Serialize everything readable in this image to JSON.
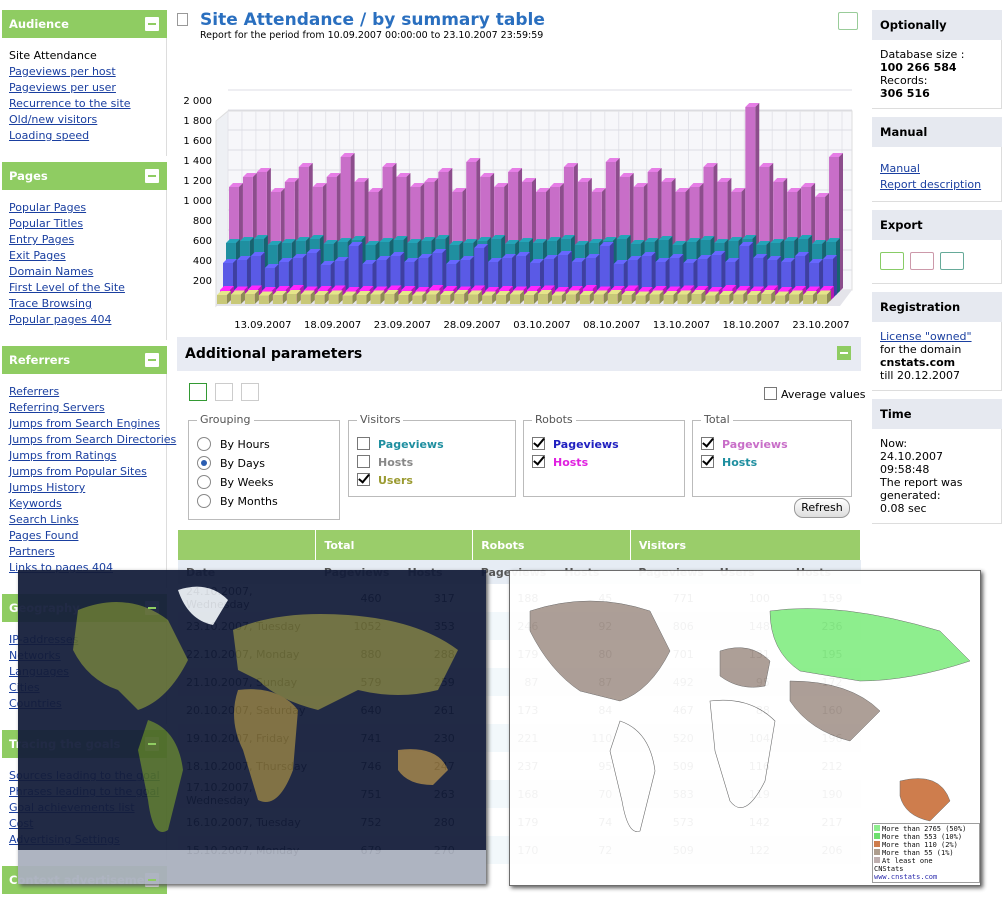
{
  "sidebar": [
    {
      "title": "Audience",
      "current": "Site Attendance",
      "links": [
        "Pageviews per host",
        "Pageviews per user",
        "Recurrence to the site",
        "Old/new visitors",
        "Loading speed"
      ]
    },
    {
      "title": "Pages",
      "links": [
        "Popular Pages",
        "Popular Titles",
        "Entry Pages",
        "Exit Pages",
        "Domain Names",
        "First Level of the Site",
        "Trace Browsing",
        "Popular pages 404"
      ]
    },
    {
      "title": "Referrers",
      "links": [
        "Referrers",
        "Referring Servers",
        "Jumps from Search Engines",
        "Jumps from Search Directories",
        "Jumps from Ratings",
        "Jumps from Popular Sites",
        "Jumps History",
        "Keywords",
        "Search Links",
        "Pages Found",
        "Partners",
        "Links to pages 404"
      ]
    },
    {
      "title": "Geography",
      "links": [
        "IP-addresses",
        "Networks",
        "Languages",
        "Cities",
        "Countries"
      ]
    },
    {
      "title": "Tracing the goals",
      "links": [
        "Sources leading to the goal",
        "Phrases leading to the goal",
        "Goal achievements list",
        "Cost",
        "Advertising Settings"
      ]
    },
    {
      "title": "Context advertisement",
      "links": []
    }
  ],
  "header": {
    "title": "Site Attendance / by summary table",
    "subtitle": "Report for the period from 10.09.2007 00:00:00 to 23.10.2007 23:59:59"
  },
  "chart_data": {
    "type": "bar3d",
    "categories": [
      null,
      null,
      null,
      "13.09.2007",
      null,
      null,
      null,
      null,
      "18.09.2007",
      null,
      null,
      null,
      null,
      "23.09.2007",
      null,
      null,
      null,
      null,
      "28.09.2007",
      null,
      null,
      null,
      null,
      "03.10.2007",
      null,
      null,
      null,
      null,
      "08.10.2007",
      null,
      null,
      null,
      null,
      "13.10.2007",
      null,
      null,
      null,
      null,
      "18.10.2007",
      null,
      null,
      null,
      null,
      "23.10.2007"
    ],
    "ylim": [
      0,
      2000
    ],
    "yticks": [
      {
        "value": 200,
        "label": "200"
      },
      {
        "value": 400,
        "label": "400"
      },
      {
        "value": 600,
        "label": "600"
      },
      {
        "value": 800,
        "label": "800"
      },
      {
        "value": 1000,
        "label": "1 000"
      },
      {
        "value": 1200,
        "label": "1 200"
      },
      {
        "value": 1400,
        "label": "1 400"
      },
      {
        "value": 1600,
        "label": "1 600"
      },
      {
        "value": 1800,
        "label": "1 800"
      },
      {
        "value": 2000,
        "label": "2 000"
      }
    ],
    "grid": true,
    "series": [
      {
        "color": "#c86ec8",
        "values": [
          1050,
          1150,
          1200,
          1000,
          1100,
          1250,
          1050,
          1150,
          1350,
          1100,
          1000,
          1250,
          1150,
          1050,
          1100,
          1200,
          1000,
          1300,
          1150,
          1050,
          1200,
          1100,
          1000,
          1050,
          1250,
          1100,
          1000,
          1300,
          1150,
          1050,
          1200,
          1100,
          1000,
          1050,
          1250,
          1100,
          1000,
          1850,
          1250,
          1100,
          1000,
          1050,
          950,
          1350
        ]
      },
      {
        "color": "#1f8fa0",
        "values": [
          520,
          540,
          560,
          500,
          520,
          540,
          560,
          510,
          530,
          550,
          500,
          530,
          550,
          520,
          540,
          560,
          500,
          520,
          540,
          560,
          510,
          530,
          520,
          540,
          560,
          500,
          520,
          540,
          560,
          510,
          530,
          550,
          500,
          530,
          550,
          520,
          540,
          560,
          500,
          520,
          540,
          560,
          510,
          530
        ]
      },
      {
        "color": "#5a5ae6",
        "values": [
          350,
          380,
          420,
          300,
          360,
          400,
          450,
          330,
          370,
          520,
          340,
          380,
          420,
          360,
          400,
          450,
          340,
          380,
          500,
          360,
          400,
          420,
          350,
          390,
          430,
          360,
          400,
          520,
          340,
          380,
          420,
          360,
          400,
          350,
          390,
          430,
          360,
          520,
          400,
          380,
          360,
          420,
          350,
          390
        ]
      },
      {
        "color": "#ff22ff",
        "values": [
          110,
          105,
          115,
          100,
          110,
          120,
          105,
          110,
          115,
          100,
          110,
          105,
          115,
          110,
          100,
          120,
          110,
          105,
          115,
          100,
          110,
          105,
          110,
          115,
          100,
          110,
          120,
          105,
          110,
          115,
          100,
          110,
          105,
          115,
          110,
          100,
          120,
          110,
          105,
          115,
          100,
          110,
          105,
          110
        ]
      },
      {
        "color": "#c8c878",
        "values": [
          90,
          95,
          100,
          85,
          90,
          100,
          95,
          90,
          95,
          85,
          90,
          95,
          100,
          90,
          85,
          95,
          90,
          100,
          95,
          85,
          90,
          95,
          90,
          100,
          85,
          95,
          90,
          95,
          100,
          90,
          85,
          95,
          90,
          95,
          100,
          85,
          90,
          95,
          90,
          100,
          85,
          95,
          90,
          95
        ]
      }
    ]
  },
  "params": {
    "title": "Additional parameters",
    "average": "Average values",
    "refresh": "Refresh",
    "grouping": {
      "title": "Grouping",
      "options": [
        "By Hours",
        "By Days",
        "By Weeks",
        "By Months"
      ],
      "selected": 1
    },
    "groups": [
      {
        "title": "Visitors",
        "items": [
          {
            "label": "Pageviews",
            "checked": false,
            "color": "#1f8fa0"
          },
          {
            "label": "Hosts",
            "checked": false,
            "color": "#888888"
          },
          {
            "label": "Users",
            "checked": true,
            "color": "#9a9a30"
          }
        ]
      },
      {
        "title": "Robots",
        "items": [
          {
            "label": "Pageviews",
            "checked": true,
            "color": "#2020c0"
          },
          {
            "label": "Hosts",
            "checked": true,
            "color": "#e020e0"
          }
        ]
      },
      {
        "title": "Total",
        "items": [
          {
            "label": "Pageviews",
            "checked": true,
            "color": "#c86ec8"
          },
          {
            "label": "Hosts",
            "checked": true,
            "color": "#1f8fa0"
          }
        ]
      }
    ]
  },
  "table": {
    "groups": [
      "Total",
      "Robots",
      "Visitors"
    ],
    "columns": [
      "Date",
      "Pageviews",
      "Hosts",
      "Pageviews",
      "Hosts",
      "Pageviews",
      "Users",
      "Hosts"
    ],
    "rows": [
      [
        "24.10.2007, Wednesday",
        460,
        317,
        188,
        45,
        771,
        100,
        159
      ],
      [
        "23.10.2007, Tuesday",
        1052,
        353,
        246,
        92,
        806,
        148,
        236
      ],
      [
        "22.10.2007, Monday",
        880,
        288,
        179,
        80,
        701,
        131,
        195
      ],
      [
        "21.10.2007, Sunday",
        579,
        259,
        87,
        87,
        492,
        95,
        172
      ],
      [
        "20.10.2007, Saturday",
        640,
        261,
        173,
        84,
        467,
        88,
        160
      ],
      [
        "19.10.2007, Friday",
        741,
        230,
        221,
        110,
        520,
        104,
        196
      ],
      [
        "18.10.2007, Thursday",
        746,
        247,
        237,
        95,
        509,
        116,
        212
      ],
      [
        "17.10.2007, Wednesday",
        751,
        263,
        168,
        70,
        583,
        119,
        190
      ],
      [
        "16.10.2007, Tuesday",
        752,
        280,
        179,
        74,
        573,
        142,
        217
      ],
      [
        "15.10.2007, Monday",
        679,
        270,
        170,
        72,
        509,
        122,
        206
      ]
    ]
  },
  "right": {
    "optionally": {
      "title": "Optionally",
      "db_label": "Database size :",
      "db": "100 266 584",
      "rec_label": "Records:",
      "rec": "306 516"
    },
    "manual": {
      "title": "Manual",
      "links": [
        "Manual",
        "Report description"
      ]
    },
    "export": {
      "title": "Export"
    },
    "registration": {
      "title": "Registration",
      "license": "License \"owned\"",
      "for": "for the domain",
      "domain": "cnstats.com",
      "till": "till 20.12.2007"
    },
    "time": {
      "title": "Time",
      "now_label": "Now:",
      "now": "24.10.2007 09:58:48",
      "gen": "The report was generated:",
      "sec": "0.08 sec"
    }
  },
  "map_legend": {
    "items": [
      {
        "label": "More than 2765 (50%)",
        "color": "#88ee88"
      },
      {
        "label": "More than 553 (10%)",
        "color": "#66dd66"
      },
      {
        "label": "More than 110 (2%)",
        "color": "#cc7744"
      },
      {
        "label": "More than 55 (1%)",
        "color": "#aa9988"
      },
      {
        "label": "At least one",
        "color": "#bbaaaa"
      }
    ],
    "brand": "CNStats",
    "url": "www.cnstats.com"
  }
}
